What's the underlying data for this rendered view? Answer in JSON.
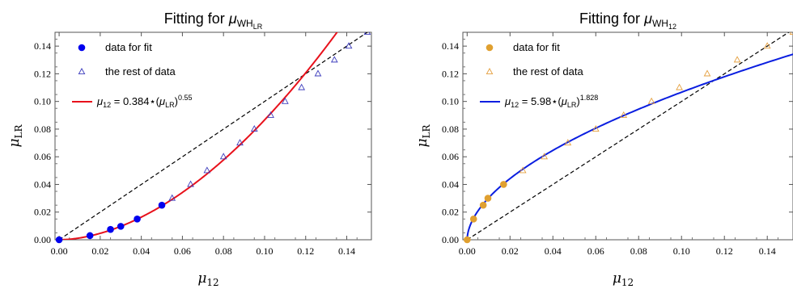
{
  "chart_data": [
    {
      "type": "scatter",
      "title": "Fitting for μ_WH_LR",
      "title_main": "Fitting for ",
      "title_sym": "μ",
      "title_sub": "WH",
      "title_subsub": "LR",
      "xlabel": "μ_12",
      "xlabel_sym": "μ",
      "xlabel_sub": "12",
      "ylabel": "μ_LR",
      "ylabel_sym": "μ",
      "ylabel_sub": "LR",
      "xlim": [
        -0.002,
        0.152
      ],
      "ylim": [
        0,
        0.15
      ],
      "xticks": [
        "0.00",
        "0.02",
        "0.04",
        "0.06",
        "0.08",
        "0.10",
        "0.12",
        "0.14"
      ],
      "xtick_values": [
        0,
        0.02,
        0.04,
        0.06,
        0.08,
        0.1,
        0.12,
        0.14
      ],
      "yticks": [
        "0.00",
        "0.02",
        "0.04",
        "0.06",
        "0.08",
        "0.10",
        "0.12",
        "0.14"
      ],
      "ytick_values": [
        0,
        0.02,
        0.04,
        0.06,
        0.08,
        0.1,
        0.12,
        0.14
      ],
      "fit_points": {
        "name": "data for fit",
        "color": "#0000ee",
        "marker": "filled-circle",
        "x": [
          0.0,
          0.015,
          0.025,
          0.03,
          0.038,
          0.05
        ],
        "y": [
          0.0,
          0.003,
          0.0075,
          0.0097,
          0.015,
          0.025
        ]
      },
      "rest_points": {
        "name": "the rest of data",
        "color": "#3d3dbd",
        "marker": "open-triangle",
        "x": [
          0.055,
          0.064,
          0.072,
          0.08,
          0.088,
          0.095,
          0.103,
          0.11,
          0.118,
          0.126,
          0.134,
          0.141,
          0.15
        ],
        "y": [
          0.03,
          0.04,
          0.05,
          0.06,
          0.07,
          0.08,
          0.09,
          0.1,
          0.11,
          0.12,
          0.13,
          0.14,
          0.15
        ]
      },
      "fit_curve": {
        "name": "μ12 = 0.384⋆(μLR)^0.55",
        "color": "#e8111b",
        "legend_mu": "μ",
        "legend_sub": "12",
        "legend_mid": " = 0.384⋆(",
        "legend_mu2": "μ",
        "legend_sub2": "LR",
        "legend_close": ")",
        "legend_exp": "0.55",
        "inverted": true,
        "coef": 0.384,
        "exponent": 0.55
      },
      "diagonal": {
        "color": "#000000",
        "style": "dashed"
      },
      "legend_position": "top-left"
    },
    {
      "type": "scatter",
      "title": "Fitting for μ_WH_12",
      "title_main": "Fitting for ",
      "title_sym": "μ",
      "title_sub": "WH",
      "title_subsub": "12",
      "xlabel": "μ_12",
      "xlabel_sym": "μ",
      "xlabel_sub": "12",
      "ylabel": "μ_LR",
      "ylabel_sym": "μ",
      "ylabel_sub": "LR",
      "xlim": [
        -0.002,
        0.152
      ],
      "ylim": [
        0,
        0.15
      ],
      "xticks": [
        "0.00",
        "0.02",
        "0.04",
        "0.06",
        "0.08",
        "0.10",
        "0.12",
        "0.14"
      ],
      "xtick_values": [
        0,
        0.02,
        0.04,
        0.06,
        0.08,
        0.1,
        0.12,
        0.14
      ],
      "yticks": [
        "0.00",
        "0.02",
        "0.04",
        "0.06",
        "0.08",
        "0.10",
        "0.12",
        "0.14"
      ],
      "ytick_values": [
        0,
        0.02,
        0.04,
        0.06,
        0.08,
        0.1,
        0.12,
        0.14
      ],
      "fit_points": {
        "name": "data for fit",
        "color": "#e0a030",
        "marker": "filled-circle",
        "x": [
          0.0,
          0.003,
          0.0075,
          0.0097,
          0.017
        ],
        "y": [
          0.0,
          0.015,
          0.025,
          0.03,
          0.04
        ]
      },
      "rest_points": {
        "name": "the rest of data",
        "color": "#e5a040",
        "marker": "open-triangle",
        "x": [
          0.026,
          0.036,
          0.047,
          0.06,
          0.073,
          0.086,
          0.099,
          0.112,
          0.126,
          0.14,
          0.152
        ],
        "y": [
          0.05,
          0.06,
          0.07,
          0.08,
          0.09,
          0.1,
          0.11,
          0.12,
          0.13,
          0.14,
          0.15
        ]
      },
      "fit_curve": {
        "name": "μ12 = 5.98⋆(μLR)^1.828",
        "color": "#0a1ee0",
        "legend_mu": "μ",
        "legend_sub": "12",
        "legend_mid": " = 5.98⋆(",
        "legend_mu2": "μ",
        "legend_sub2": "LR",
        "legend_close": ")",
        "legend_exp": "1.828",
        "inverted": false,
        "coef": 5.98,
        "exponent": 1.828
      },
      "diagonal": {
        "color": "#000000",
        "style": "dashed"
      },
      "legend_position": "top-left"
    }
  ]
}
